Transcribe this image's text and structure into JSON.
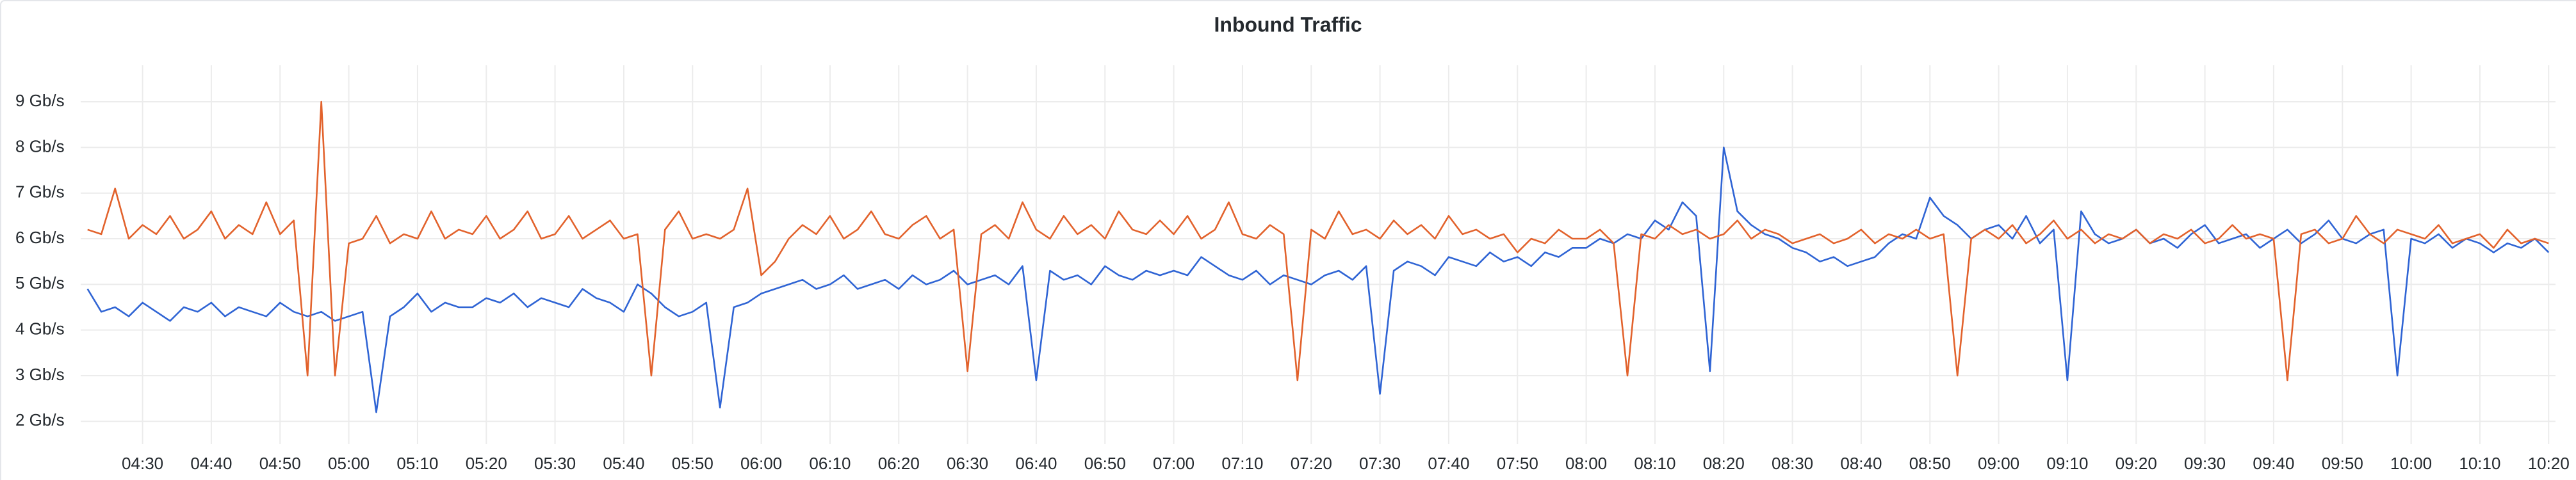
{
  "chart_data": {
    "type": "line",
    "title": "Inbound Traffic",
    "x": [
      "04:22",
      "04:24",
      "04:26",
      "04:28",
      "04:30",
      "04:32",
      "04:34",
      "04:36",
      "04:38",
      "04:40",
      "04:42",
      "04:44",
      "04:46",
      "04:48",
      "04:50",
      "04:52",
      "04:54",
      "04:56",
      "04:58",
      "05:00",
      "05:02",
      "05:04",
      "05:06",
      "05:08",
      "05:10",
      "05:12",
      "05:14",
      "05:16",
      "05:18",
      "05:20",
      "05:22",
      "05:24",
      "05:26",
      "05:28",
      "05:30",
      "05:32",
      "05:34",
      "05:36",
      "05:38",
      "05:40",
      "05:42",
      "05:44",
      "05:46",
      "05:48",
      "05:50",
      "05:52",
      "05:54",
      "05:56",
      "05:58",
      "06:00",
      "06:02",
      "06:04",
      "06:06",
      "06:08",
      "06:10",
      "06:12",
      "06:14",
      "06:16",
      "06:18",
      "06:20",
      "06:22",
      "06:24",
      "06:26",
      "06:28",
      "06:30",
      "06:32",
      "06:34",
      "06:36",
      "06:38",
      "06:40",
      "06:42",
      "06:44",
      "06:46",
      "06:48",
      "06:50",
      "06:52",
      "06:54",
      "06:56",
      "06:58",
      "07:00",
      "07:02",
      "07:04",
      "07:06",
      "07:08",
      "07:10",
      "07:12",
      "07:14",
      "07:16",
      "07:18",
      "07:20",
      "07:22",
      "07:24",
      "07:26",
      "07:28",
      "07:30",
      "07:32",
      "07:34",
      "07:36",
      "07:38",
      "07:40",
      "07:42",
      "07:44",
      "07:46",
      "07:48",
      "07:50",
      "07:52",
      "07:54",
      "07:56",
      "07:58",
      "08:00",
      "08:02",
      "08:04",
      "08:06",
      "08:08",
      "08:10",
      "08:12",
      "08:14",
      "08:16",
      "08:18",
      "08:20",
      "08:22",
      "08:24",
      "08:26",
      "08:28",
      "08:30",
      "08:32",
      "08:34",
      "08:36",
      "08:38",
      "08:40",
      "08:42",
      "08:44",
      "08:46",
      "08:48",
      "08:50",
      "08:52",
      "08:54",
      "08:56",
      "08:58",
      "09:00",
      "09:02",
      "09:04",
      "09:06",
      "09:08",
      "09:10",
      "09:12",
      "09:14",
      "09:16",
      "09:18",
      "09:20",
      "09:22",
      "09:24",
      "09:26",
      "09:28",
      "09:30",
      "09:32",
      "09:34",
      "09:36",
      "09:38",
      "09:40",
      "09:42",
      "09:44",
      "09:46",
      "09:48",
      "09:50",
      "09:52",
      "09:54",
      "09:56",
      "09:58",
      "10:00",
      "10:02",
      "10:04",
      "10:06",
      "10:08",
      "10:10",
      "10:12",
      "10:14",
      "10:16",
      "10:18",
      "10:20"
    ],
    "series": [
      {
        "color": "#2f64d4",
        "values": [
          4.9,
          4.4,
          4.5,
          4.3,
          4.6,
          4.4,
          4.2,
          4.5,
          4.4,
          4.6,
          4.3,
          4.5,
          4.4,
          4.3,
          4.6,
          4.4,
          4.3,
          4.4,
          4.2,
          4.3,
          4.4,
          2.2,
          4.3,
          4.5,
          4.8,
          4.4,
          4.6,
          4.5,
          4.5,
          4.7,
          4.6,
          4.8,
          4.5,
          4.7,
          4.6,
          4.5,
          4.9,
          4.7,
          4.6,
          4.4,
          5.0,
          4.8,
          4.5,
          4.3,
          4.4,
          4.6,
          2.3,
          4.5,
          4.6,
          4.8,
          4.9,
          5.0,
          5.1,
          4.9,
          5.0,
          5.2,
          4.9,
          5.0,
          5.1,
          4.9,
          5.2,
          5.0,
          5.1,
          5.3,
          5.0,
          5.1,
          5.2,
          5.0,
          5.4,
          2.9,
          5.3,
          5.1,
          5.2,
          5.0,
          5.4,
          5.2,
          5.1,
          5.3,
          5.2,
          5.3,
          5.2,
          5.6,
          5.4,
          5.2,
          5.1,
          5.3,
          5.0,
          5.2,
          5.1,
          5.0,
          5.2,
          5.3,
          5.1,
          5.4,
          2.6,
          5.3,
          5.5,
          5.4,
          5.2,
          5.6,
          5.5,
          5.4,
          5.7,
          5.5,
          5.6,
          5.4,
          5.7,
          5.6,
          5.8,
          5.8,
          6.0,
          5.9,
          6.1,
          6.0,
          6.4,
          6.2,
          6.8,
          6.5,
          3.1,
          8.0,
          6.6,
          6.3,
          6.1,
          6.0,
          5.8,
          5.7,
          5.5,
          5.6,
          5.4,
          5.5,
          5.6,
          5.9,
          6.1,
          6.0,
          6.9,
          6.5,
          6.3,
          6.0,
          6.2,
          6.3,
          6.0,
          6.5,
          5.9,
          6.2,
          2.9,
          6.6,
          6.1,
          5.9,
          6.0,
          6.2,
          5.9,
          6.0,
          5.8,
          6.1,
          6.3,
          5.9,
          6.0,
          6.1,
          5.8,
          6.0,
          6.2,
          5.9,
          6.1,
          6.4,
          6.0,
          5.9,
          6.1,
          6.2,
          3.0,
          6.0,
          5.9,
          6.1,
          5.8,
          6.0,
          5.9,
          5.7,
          5.9,
          5.8,
          6.0,
          5.7
        ]
      },
      {
        "color": "#e2622c",
        "values": [
          6.2,
          6.1,
          7.1,
          6.0,
          6.3,
          6.1,
          6.5,
          6.0,
          6.2,
          6.6,
          6.0,
          6.3,
          6.1,
          6.8,
          6.1,
          6.4,
          3.0,
          9.0,
          3.0,
          5.9,
          6.0,
          6.5,
          5.9,
          6.1,
          6.0,
          6.6,
          6.0,
          6.2,
          6.1,
          6.5,
          6.0,
          6.2,
          6.6,
          6.0,
          6.1,
          6.5,
          6.0,
          6.2,
          6.4,
          6.0,
          6.1,
          3.0,
          6.2,
          6.6,
          6.0,
          6.1,
          6.0,
          6.2,
          7.1,
          5.2,
          5.5,
          6.0,
          6.3,
          6.1,
          6.5,
          6.0,
          6.2,
          6.6,
          6.1,
          6.0,
          6.3,
          6.5,
          6.0,
          6.2,
          3.1,
          6.1,
          6.3,
          6.0,
          6.8,
          6.2,
          6.0,
          6.5,
          6.1,
          6.3,
          6.0,
          6.6,
          6.2,
          6.1,
          6.4,
          6.1,
          6.5,
          6.0,
          6.2,
          6.8,
          6.1,
          6.0,
          6.3,
          6.1,
          2.9,
          6.2,
          6.0,
          6.6,
          6.1,
          6.2,
          6.0,
          6.4,
          6.1,
          6.3,
          6.0,
          6.5,
          6.1,
          6.2,
          6.0,
          6.1,
          5.7,
          6.0,
          5.9,
          6.2,
          6.0,
          6.0,
          6.2,
          5.9,
          3.0,
          6.1,
          6.0,
          6.3,
          6.1,
          6.2,
          6.0,
          6.1,
          6.4,
          6.0,
          6.2,
          6.1,
          5.9,
          6.0,
          6.1,
          5.9,
          6.0,
          6.2,
          5.9,
          6.1,
          6.0,
          6.2,
          6.0,
          6.1,
          3.0,
          6.0,
          6.2,
          6.0,
          6.3,
          5.9,
          6.1,
          6.4,
          6.0,
          6.2,
          5.9,
          6.1,
          6.0,
          6.2,
          5.9,
          6.1,
          6.0,
          6.2,
          5.9,
          6.0,
          6.3,
          6.0,
          6.1,
          6.0,
          2.9,
          6.1,
          6.2,
          5.9,
          6.0,
          6.5,
          6.1,
          5.9,
          6.2,
          6.1,
          6.0,
          6.3,
          5.9,
          6.0,
          6.1,
          5.8,
          6.2,
          5.9,
          6.0,
          5.9
        ]
      }
    ],
    "xlim": [
      "04:21",
      "10:21"
    ],
    "xticks": [
      "04:30",
      "04:40",
      "04:50",
      "05:00",
      "05:10",
      "05:20",
      "05:30",
      "05:40",
      "05:50",
      "06:00",
      "06:10",
      "06:20",
      "06:30",
      "06:40",
      "06:50",
      "07:00",
      "07:10",
      "07:20",
      "07:30",
      "07:40",
      "07:50",
      "08:00",
      "08:10",
      "08:20",
      "08:30",
      "08:40",
      "08:50",
      "09:00",
      "09:10",
      "09:20",
      "09:30",
      "09:40",
      "09:50",
      "10:00",
      "10:10",
      "10:20"
    ],
    "ylim": [
      1.5,
      9.8
    ],
    "yticks": [
      {
        "value": 2,
        "label": "2 Gb/s"
      },
      {
        "value": 3,
        "label": "3 Gb/s"
      },
      {
        "value": 4,
        "label": "4 Gb/s"
      },
      {
        "value": 5,
        "label": "5 Gb/s"
      },
      {
        "value": 6,
        "label": "6 Gb/s"
      },
      {
        "value": 7,
        "label": "7 Gb/s"
      },
      {
        "value": 8,
        "label": "8 Gb/s"
      },
      {
        "value": 9,
        "label": "9 Gb/s"
      }
    ],
    "grid": true
  }
}
